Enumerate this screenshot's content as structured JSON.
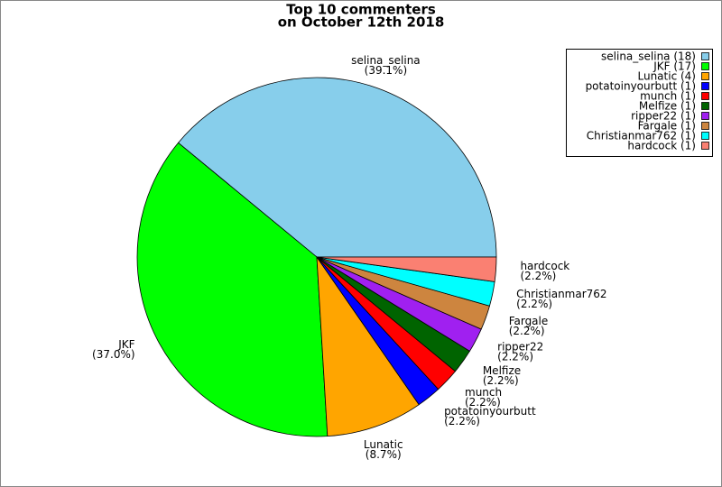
{
  "chart_data": {
    "type": "pie",
    "title": [
      "Top 10 commenters",
      "on October 12th 2018"
    ],
    "categories": [
      "selina_selina",
      "JKF",
      "Lunatic",
      "potatoinyourbutt",
      "munch",
      "Melfize",
      "ripper22",
      "Fargale",
      "Christianmar762",
      "hardcock"
    ],
    "values": [
      39.1,
      37.0,
      8.7,
      2.2,
      2.2,
      2.2,
      2.2,
      2.2,
      2.2,
      2.2
    ],
    "value_labels": [
      "(39.1%)",
      "(37.0%)",
      "(8.7%)",
      "(2.2%)",
      "(2.2%)",
      "(2.2%)",
      "(2.2%)",
      "(2.2%)",
      "(2.2%)",
      "(2.2%)"
    ],
    "legend_labels": [
      "selina_selina (18)",
      "JKF (17)",
      "Lunatic (4)",
      "potatoinyourbutt (1)",
      "munch (1)",
      "Melfize (1)",
      "ripper22 (1)",
      "Fargale (1)",
      "Christianmar762 (1)",
      "hardcock (1)"
    ],
    "colors": [
      "#87ceeb",
      "#00ff00",
      "#ffa500",
      "#0000ff",
      "#ff0000",
      "#006400",
      "#a020f0",
      "#cd853f",
      "#00ffff",
      "#fa8072"
    ]
  }
}
